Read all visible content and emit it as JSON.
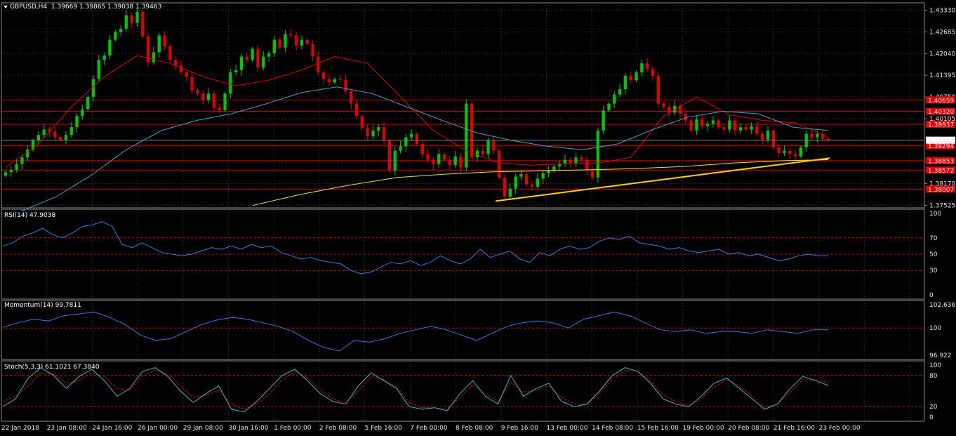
{
  "header": {
    "symbol_line": "GBPUSD,H4  1.39669 1.39865 1.39038 1.39463",
    "rsi_label": "RSI(14) 47.9038",
    "momentum_label": "Momentum(14) 99.7811",
    "stoch_label": "Stoch(5,3,3) 61.1021 67.3840"
  },
  "colors": {
    "background": "#000000",
    "grid": "#3a3a3a",
    "bull_candle": "#00c800",
    "bear_candle": "#e00000",
    "level_line": "#e00000",
    "ma_red": "#e00000",
    "ma_cyan": "#3aa6c8",
    "ma_yellow": "#e6e64a",
    "trendline": "#ffd200",
    "indicator_line": "#2f7fe0",
    "stoch_signal": "#e00000",
    "stoch_main": "#3ab8c8",
    "axis_text": "#e6e6e6",
    "price_tag_bg": "#e00000",
    "current_price_bg": "#ffffff"
  },
  "chart_data": [
    {
      "type": "candlestick",
      "symbol": "GBPUSD",
      "timeframe": "H4",
      "ohlc_last": {
        "open": 1.39669,
        "high": 1.39865,
        "low": 1.39038,
        "close": 1.39463
      },
      "y_ticks": [
        "1.43330",
        "1.42685",
        "1.42040",
        "1.41395",
        "1.40750",
        "1.40105",
        "1.38815",
        "1.38170",
        "1.37525"
      ],
      "ylim": [
        1.3745,
        1.4355
      ],
      "x_tick_labels": [
        "22 Jan 2018",
        "23 Jan 08:00",
        "24 Jan 16:00",
        "26 Jan 00:00",
        "29 Jan 08:00",
        "30 Jan 16:00",
        "1 Feb 00:00",
        "2 Feb 08:00",
        "5 Feb 16:00",
        "7 Feb 00:00",
        "8 Feb 08:00",
        "9 Feb 16:00",
        "13 Feb 00:00",
        "14 Feb 08:00",
        "15 Feb 16:00",
        "19 Feb 00:00",
        "20 Feb 08:00",
        "21 Feb 16:00",
        "23 Feb 00:00"
      ],
      "horizontal_levels": [
        "1.40659",
        "1.40320",
        "1.39937",
        "1.39294",
        "1.38853",
        "1.38572",
        "1.38007"
      ],
      "current_price": "1.39463",
      "candles_close": [
        1.3851,
        1.3858,
        1.3875,
        1.3895,
        1.3918,
        1.3945,
        1.3962,
        1.3978,
        1.3972,
        1.3955,
        1.3948,
        1.3962,
        1.3985,
        1.4018,
        1.4038,
        1.4075,
        1.4128,
        1.4185,
        1.4198,
        1.4245,
        1.4268,
        1.4278,
        1.4318,
        1.4295,
        1.4328,
        1.4255,
        1.4178,
        1.4208,
        1.4258,
        1.4225,
        1.4185,
        1.4168,
        1.4148,
        1.4135,
        1.4095,
        1.4085,
        1.4065,
        1.4085,
        1.4042,
        1.4035,
        1.4085,
        1.4148,
        1.4155,
        1.4195,
        1.4185,
        1.4218,
        1.4162,
        1.4195,
        1.4205,
        1.4245,
        1.4222,
        1.4262,
        1.4258,
        1.4228,
        1.4245,
        1.4232,
        1.4195,
        1.4148,
        1.4128,
        1.4118,
        1.4128,
        1.4125,
        1.4092,
        1.4055,
        1.4018,
        1.3982,
        1.3958,
        1.3975,
        1.3985,
        1.3945,
        1.3855,
        1.3915,
        1.3928,
        1.3955,
        1.3965,
        1.3935,
        1.3905,
        1.3888,
        1.3875,
        1.3905,
        1.3888,
        1.3872,
        1.3898,
        1.3865,
        1.4055,
        1.3895,
        1.3915,
        1.3905,
        1.3945,
        1.3915,
        1.3835,
        1.3778,
        1.3802,
        1.3838,
        1.3845,
        1.3815,
        1.3808,
        1.3832,
        1.3848,
        1.3855,
        1.3868,
        1.3875,
        1.3888,
        1.3878,
        1.3895,
        1.3888,
        1.3855,
        1.3835,
        1.3975,
        1.4035,
        1.4055,
        1.4082,
        1.4098,
        1.4138,
        1.4125,
        1.4148,
        1.4175,
        1.4158,
        1.4138,
        1.4055,
        1.4045,
        1.4028,
        1.4048,
        1.4025,
        1.4005,
        1.3975,
        1.4008,
        1.3988,
        1.3995,
        1.4005,
        1.3985,
        1.3978,
        1.4005,
        1.3975,
        1.3985,
        1.3978,
        1.3988,
        1.3965,
        1.3948,
        1.3975,
        1.3925,
        1.3908,
        1.3915,
        1.3905,
        1.3898,
        1.3925,
        1.3965,
        1.3955,
        1.3965,
        1.395,
        1.3946
      ],
      "series": [
        {
          "name": "MA red",
          "values": [
            1.3865,
            1.3935,
            1.4045,
            1.4135,
            1.4198,
            1.4175,
            1.4135,
            1.4108,
            1.4125,
            1.4155,
            1.4195,
            1.4175,
            1.4075,
            1.3975,
            1.3915,
            1.3878,
            1.3872,
            1.3876,
            1.3878,
            1.3895,
            1.4018,
            1.4075,
            1.4022,
            1.4005,
            1.3998,
            1.3955
          ]
        },
        {
          "name": "MA cyan",
          "values": [
            1.3735,
            1.3778,
            1.3842,
            1.3918,
            1.3975,
            1.4005,
            1.4025,
            1.4055,
            1.4088,
            1.4105,
            1.4085,
            1.4045,
            1.4005,
            1.3968,
            1.3945,
            1.3928,
            1.3918,
            1.3935,
            1.3978,
            1.4015,
            1.4032,
            1.4025,
            1.3985,
            1.3975
          ]
        },
        {
          "name": "MA yellow",
          "values": [
            1.3752,
            1.3785,
            1.3812,
            1.3835,
            1.3845,
            1.3852,
            1.3855,
            1.3858,
            1.3862,
            1.3868,
            1.3878,
            1.3885,
            1.3888
          ]
        },
        {
          "name": "trendline",
          "values": [
            1.3765,
            1.3893
          ]
        }
      ]
    },
    {
      "type": "line",
      "name": "RSI(14)",
      "value": "47.9038",
      "y_ticks": [
        "100",
        "70",
        "50",
        "30",
        "0"
      ],
      "levels": [
        70,
        50,
        30
      ],
      "ylim": [
        0,
        100
      ],
      "values": [
        60,
        64,
        72,
        76,
        82,
        74,
        70,
        76,
        84,
        86,
        90,
        84,
        62,
        58,
        64,
        58,
        52,
        50,
        48,
        50,
        54,
        58,
        56,
        60,
        56,
        62,
        58,
        60,
        52,
        48,
        44,
        46,
        42,
        40,
        38,
        30,
        26,
        28,
        34,
        40,
        38,
        42,
        36,
        40,
        48,
        42,
        38,
        44,
        56,
        46,
        50,
        54,
        44,
        40,
        52,
        48,
        56,
        60,
        56,
        58,
        66,
        70,
        68,
        72,
        64,
        62,
        60,
        56,
        58,
        54,
        52,
        54,
        56,
        50,
        52,
        48,
        50,
        46,
        42,
        44,
        48,
        50,
        48,
        48
      ]
    },
    {
      "type": "line",
      "name": "Momentum(14)",
      "value": "99.7811",
      "y_ticks": [
        "102.6362",
        "100",
        "96.922"
      ],
      "levels": [
        100
      ],
      "ylim": [
        96.922,
        102.6362
      ],
      "values": [
        100.1,
        100.6,
        101.0,
        100.8,
        101.4,
        101.6,
        101.8,
        101.2,
        100.4,
        99.2,
        98.6,
        98.8,
        99.6,
        100.4,
        100.9,
        101.2,
        101.0,
        100.6,
        100.2,
        99.6,
        98.6,
        97.8,
        97.4,
        98.6,
        98.4,
        98.8,
        99.4,
        99.8,
        100.2,
        99.8,
        99.2,
        98.6,
        99.4,
        100.2,
        100.6,
        100.8,
        100.6,
        100.0,
        101.0,
        101.4,
        101.8,
        101.4,
        100.6,
        99.8,
        99.6,
        99.8,
        99.4,
        99.6,
        99.6,
        99.4,
        99.8,
        99.6,
        99.4,
        99.8,
        99.8
      ]
    },
    {
      "type": "line",
      "name": "Stoch(5,3,3)",
      "value": "61.1021 67.3840",
      "y_ticks": [
        "100",
        "80",
        "20",
        "0"
      ],
      "levels": [
        80,
        20
      ],
      "ylim": [
        0,
        100
      ],
      "series": [
        {
          "name": "main",
          "values": [
            20,
            35,
            75,
            95,
            80,
            55,
            78,
            92,
            70,
            40,
            55,
            88,
            95,
            78,
            50,
            28,
            45,
            60,
            15,
            10,
            30,
            55,
            80,
            92,
            70,
            45,
            30,
            25,
            60,
            85,
            70,
            55,
            20,
            15,
            18,
            12,
            45,
            70,
            40,
            25,
            80,
            40,
            55,
            65,
            30,
            20,
            25,
            50,
            80,
            95,
            88,
            65,
            35,
            25,
            20,
            40,
            65,
            75,
            55,
            35,
            15,
            25,
            55,
            78,
            70,
            61
          ]
        },
        {
          "name": "signal",
          "values": [
            30,
            40,
            60,
            85,
            82,
            65,
            70,
            85,
            78,
            55,
            52,
            78,
            90,
            82,
            60,
            38,
            42,
            52,
            25,
            15,
            25,
            45,
            72,
            88,
            76,
            52,
            35,
            28,
            50,
            78,
            72,
            58,
            28,
            18,
            18,
            15,
            38,
            62,
            45,
            30,
            68,
            48,
            52,
            60,
            38,
            25,
            25,
            45,
            72,
            90,
            88,
            70,
            42,
            30,
            22,
            35,
            58,
            72,
            60,
            40,
            20,
            24,
            48,
            72,
            72,
            67
          ]
        }
      ]
    }
  ]
}
